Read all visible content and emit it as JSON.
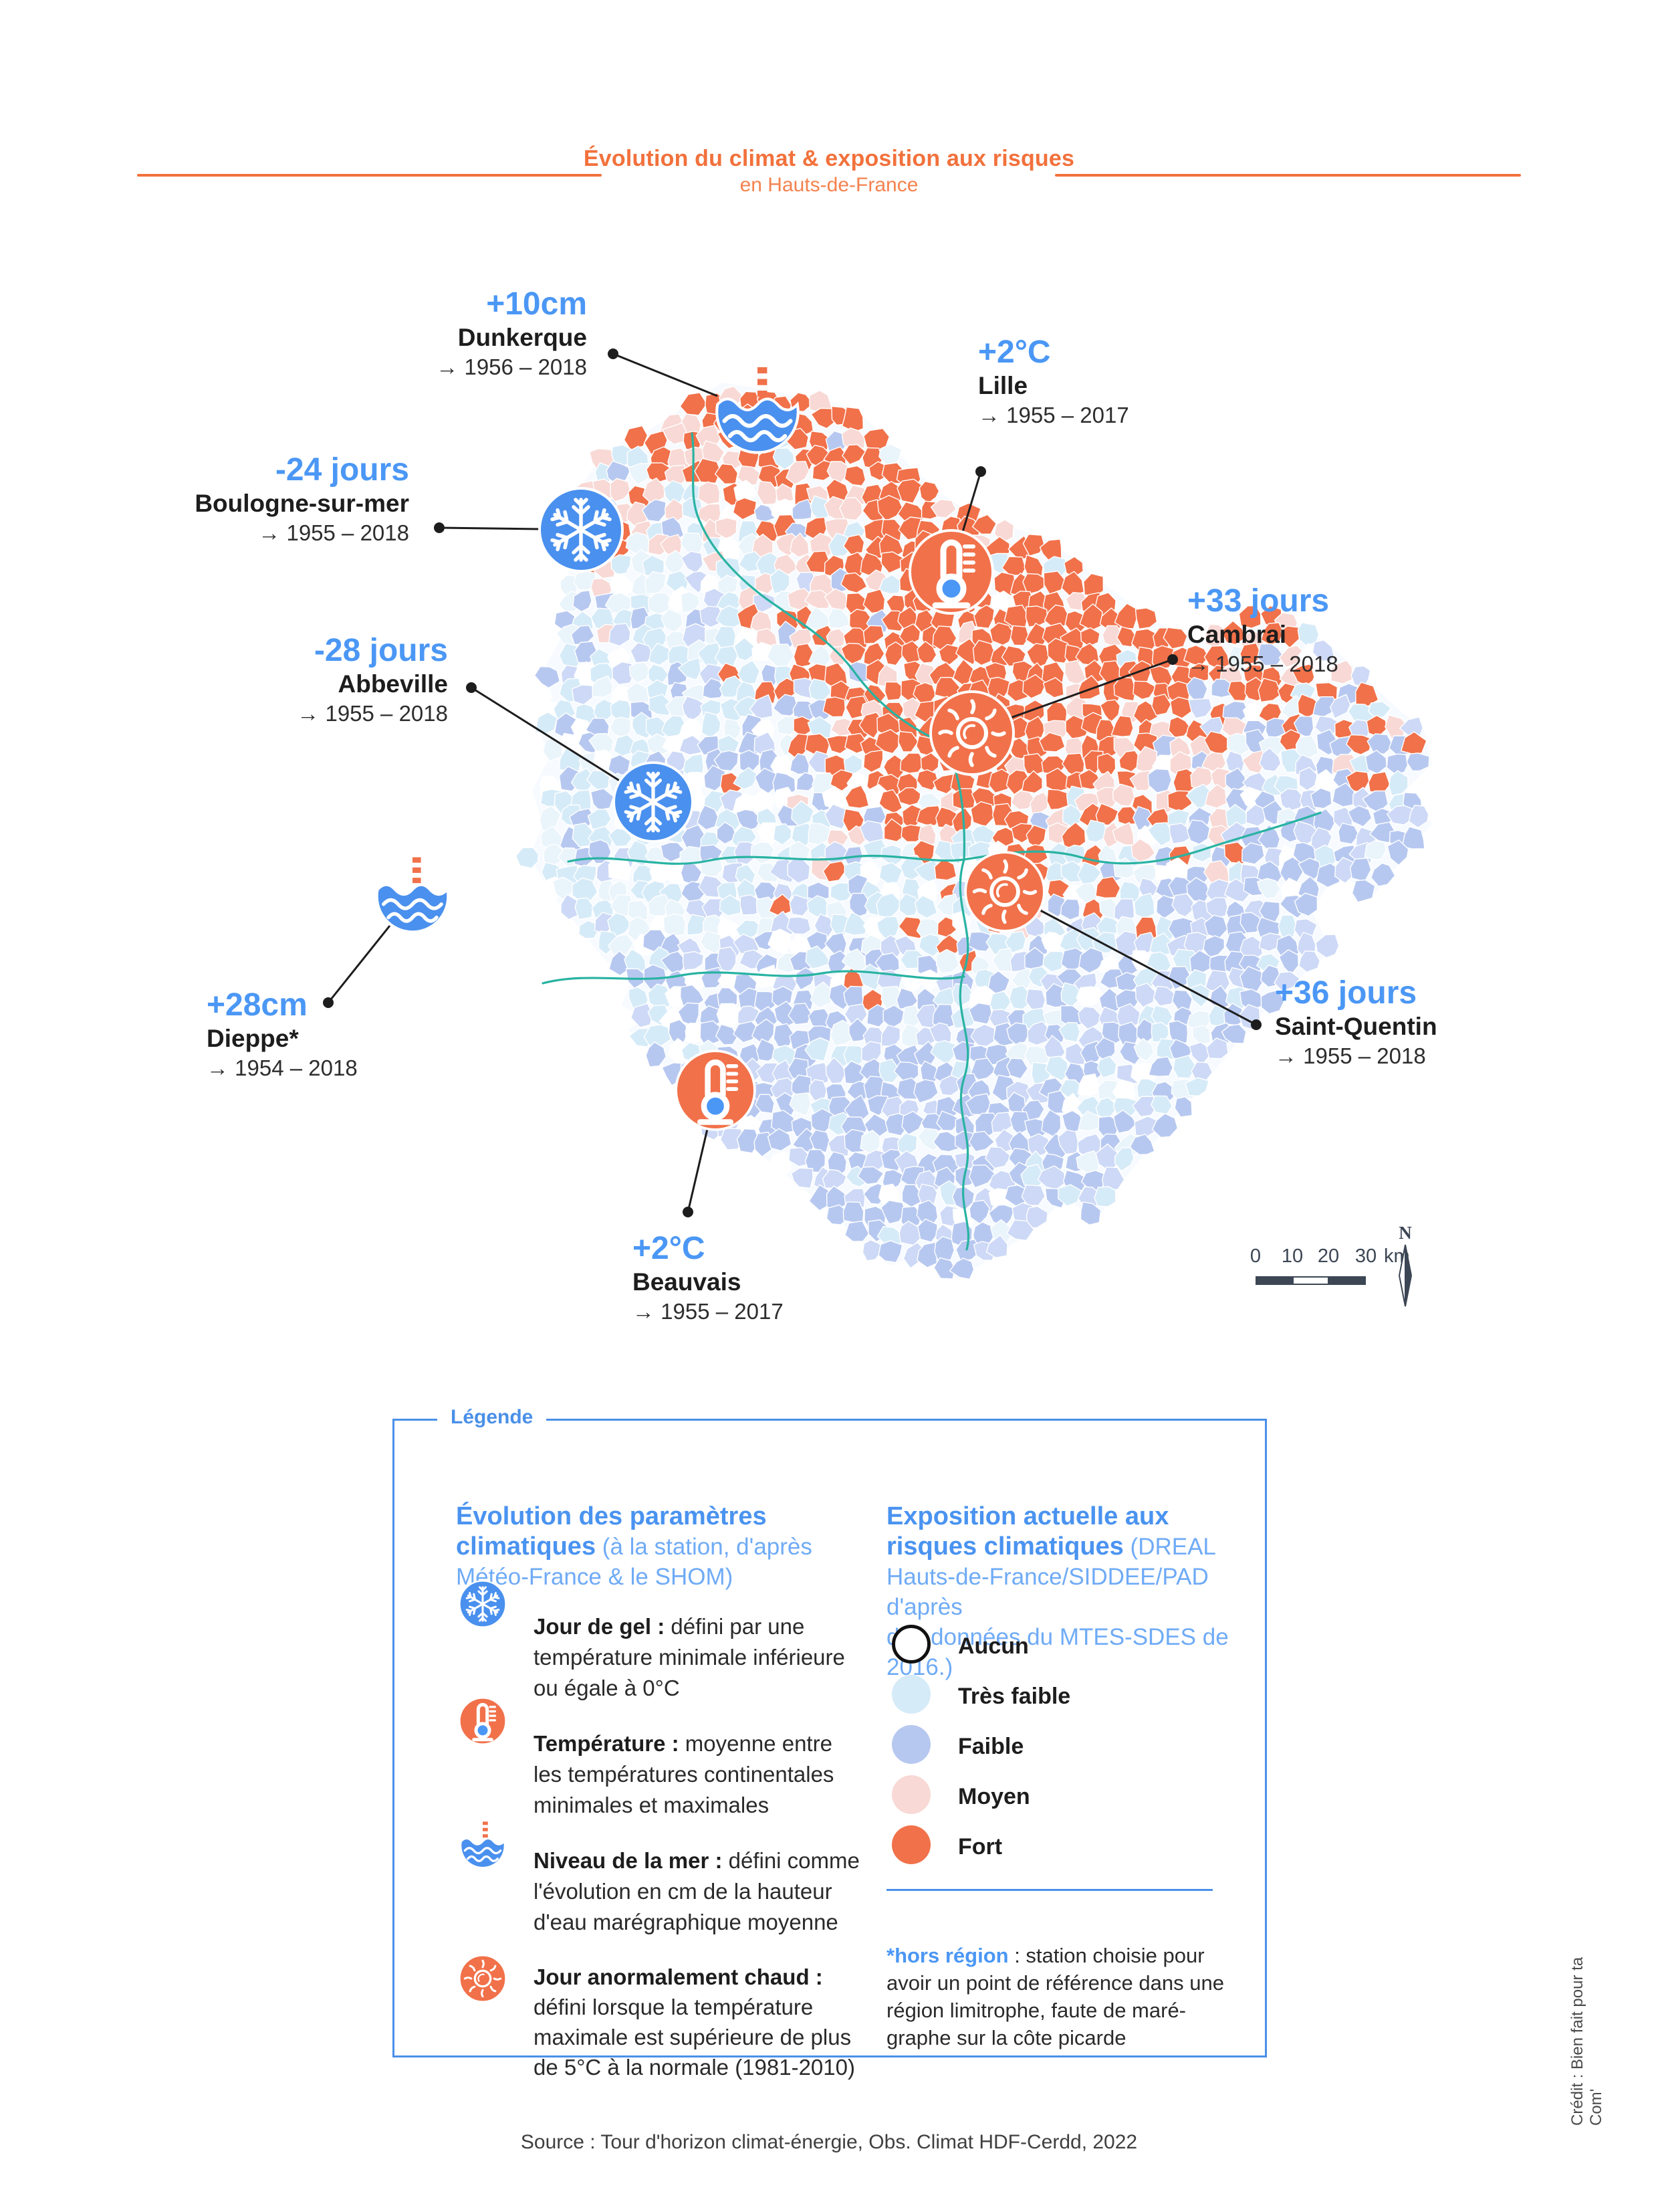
{
  "header": {
    "title": "Évolution du climat & exposition aux risques",
    "subtitle": "en Hauts-de-France"
  },
  "annotations": [
    {
      "id": "dunkerque",
      "value": "+10cm",
      "city": "Dunkerque",
      "period": "→ 1956 – 2018",
      "icon": "sea-level"
    },
    {
      "id": "boulogne",
      "value": "-24 jours",
      "city": "Boulogne-sur-mer",
      "period": "→ 1955 – 2018",
      "icon": "frost-day"
    },
    {
      "id": "abbeville",
      "value": "-28 jours",
      "city": "Abbeville",
      "period": "→ 1955 – 2018",
      "icon": "frost-day"
    },
    {
      "id": "dieppe",
      "value": "+28cm",
      "city": "Dieppe*",
      "period": "→ 1954 – 2018",
      "icon": "sea-level"
    },
    {
      "id": "lille",
      "value": "+2°C",
      "city": "Lille",
      "period": "→ 1955 – 2017",
      "icon": "temperature"
    },
    {
      "id": "cambrai",
      "value": "+33 jours",
      "city": "Cambrai",
      "period": "→ 1955 – 2018",
      "icon": "hot-day"
    },
    {
      "id": "saint-quentin",
      "value": "+36 jours",
      "city": "Saint-Quentin",
      "period": "→ 1955 – 2018",
      "icon": "hot-day"
    },
    {
      "id": "beauvais",
      "value": "+2°C",
      "city": "Beauvais",
      "period": "→ 1955 – 2017",
      "icon": "temperature"
    }
  ],
  "map": {
    "scale_bar": {
      "ticks": [
        "0",
        "10",
        "20",
        "30"
      ],
      "unit": "km"
    },
    "north_label": "N",
    "palette": {
      "none": "#ffffff",
      "very_low": "#d6ebf8",
      "very_low_alt": "#eaf4fb",
      "low": "#b7c8f0",
      "low_alt": "#cdd9f6",
      "medium": "#f8d9d5",
      "high": "#f1714a",
      "boundary_teal": "#28b3a2"
    }
  },
  "legend": {
    "box_label": "Légende",
    "left": {
      "title_bold": "Évolution des paramètres\nclimatiques",
      "title_rest": " (à la station, d'après\nMétéo-France & le SHOM)",
      "items": [
        {
          "icon": "frost-day",
          "term": "Jour de gel :",
          "text": " défini par une\ntempérature minimale inférieure\nou égale à 0°C"
        },
        {
          "icon": "temperature",
          "term": "Température :",
          "text": " moyenne entre\nles températures continentales\nminimales et maximales"
        },
        {
          "icon": "sea-level",
          "term": "Niveau de la mer :",
          "text": " défini comme\nl'évolution en cm de la hauteur\nd'eau marégraphique moyenne"
        },
        {
          "icon": "hot-day",
          "term": "Jour anormalement chaud :",
          "text": "\ndéfini lorsque la température\nmaximale est supérieure de plus\nde 5°C à la normale (1981-2010)"
        }
      ]
    },
    "right": {
      "title_bold": "Exposition actuelle aux\nrisques climatiques",
      "title_rest": " (DREAL\nHauts-de-France/SIDDEE/PAD d'après\ndes données du MTES-SDES de 2016.)",
      "items": [
        {
          "label": "Aucun",
          "color": "#ffffff",
          "outlined": true
        },
        {
          "label": "Très faible",
          "color": "#d6ebf8"
        },
        {
          "label": "Faible",
          "color": "#b7c8f0"
        },
        {
          "label": "Moyen",
          "color": "#f8d9d5"
        },
        {
          "label": "Fort",
          "color": "#f1714a"
        }
      ],
      "note_bold": "*hors région",
      "note_rest": " : station choisie pour\navoir un point de référence dans une\nrégion limitrophe, faute de maré-\ngraphe sur la côte picarde"
    }
  },
  "source": "Source : Tour d'horizon climat-énergie, Obs. Climat HDF-Cerdd, 2022",
  "credit": "Crédit : Bien fait pour ta Com'",
  "colors": {
    "accent_orange": "#f2713c",
    "value_blue": "#4b97f5",
    "legend_border_blue": "#4a90e8",
    "legend_title_blue": "#4a93f0",
    "legend_light_blue": "#6fabf6",
    "icon_blue": "#4a90ee",
    "icon_orange": "#f1714a",
    "ink": "#1d1d1d",
    "scalebar_dark": "#3c4654"
  }
}
